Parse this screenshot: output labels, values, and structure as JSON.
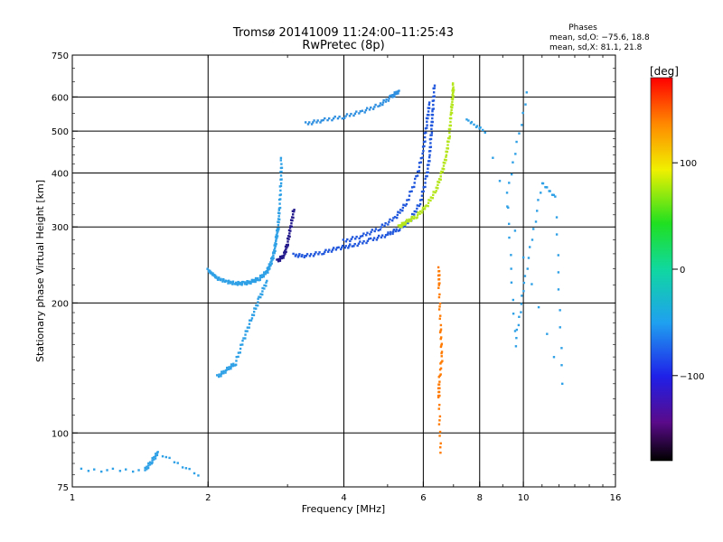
{
  "chart_data": {
    "type": "scatter",
    "title": "Tromsø 20141009 11:24:00–11:25:43",
    "subtitle": "RwPretec (8p)",
    "xlabel": "Frequency [MHz]",
    "ylabel": "Stationary phase Virtual Height [km]",
    "x_scale": "log",
    "y_scale": "log",
    "xlim": [
      1,
      16
    ],
    "ylim": [
      75,
      750
    ],
    "x_ticks": [
      1,
      2,
      4,
      6,
      8,
      10,
      16
    ],
    "x_tick_labels": [
      "1",
      "2",
      "4",
      "6",
      "8",
      "10",
      "16"
    ],
    "y_ticks": [
      75,
      100,
      200,
      300,
      400,
      500,
      600,
      750
    ],
    "y_tick_labels": [
      "75",
      "100",
      "200",
      "300",
      "400",
      "500",
      "600",
      "750"
    ],
    "grid": true,
    "phase_stats": {
      "title": "Phases",
      "line1": "mean, sd,O: −75.6, 18.8",
      "line2": "mean, sd,X: 81.1, 21.8"
    },
    "colorbar": {
      "label": "[deg]",
      "range": [
        -180,
        180
      ],
      "ticks": [
        -100,
        0,
        100
      ],
      "tick_labels": [
        "−100",
        "0",
        "100"
      ]
    },
    "traces": [
      {
        "name_hint": "o-trace-E",
        "color": "#2ea0e6",
        "points": [
          [
            2.0,
            238
          ],
          [
            2.05,
            233
          ],
          [
            2.1,
            228
          ],
          [
            2.2,
            224
          ],
          [
            2.3,
            222
          ],
          [
            2.4,
            222
          ],
          [
            2.5,
            224
          ],
          [
            2.6,
            228
          ],
          [
            2.7,
            236
          ],
          [
            2.75,
            246
          ],
          [
            2.8,
            260
          ],
          [
            2.83,
            280
          ],
          [
            2.86,
            300
          ],
          [
            2.88,
            330
          ],
          [
            2.9,
            380
          ],
          [
            2.91,
            430
          ]
        ]
      },
      {
        "name_hint": "o-trace-F",
        "color": "#1f56dc",
        "points": [
          [
            3.1,
            258
          ],
          [
            3.3,
            257
          ],
          [
            3.6,
            262
          ],
          [
            3.9,
            268
          ],
          [
            4.2,
            272
          ],
          [
            4.6,
            280
          ],
          [
            5.0,
            288
          ],
          [
            5.3,
            297
          ],
          [
            5.6,
            310
          ],
          [
            5.9,
            340
          ],
          [
            6.1,
            390
          ],
          [
            6.2,
            440
          ],
          [
            6.25,
            500
          ],
          [
            6.3,
            560
          ],
          [
            6.35,
            640
          ]
        ]
      },
      {
        "name_hint": "o-trace-F-upper",
        "color": "#1f56dc",
        "points": [
          [
            4.0,
            278
          ],
          [
            4.4,
            286
          ],
          [
            4.8,
            298
          ],
          [
            5.2,
            315
          ],
          [
            5.5,
            340
          ],
          [
            5.8,
            390
          ],
          [
            6.0,
            450
          ],
          [
            6.1,
            520
          ],
          [
            6.2,
            580
          ]
        ]
      },
      {
        "name_hint": "x-trace-F",
        "color": "#b5e61d",
        "points": [
          [
            5.3,
            300
          ],
          [
            5.5,
            308
          ],
          [
            5.8,
            318
          ],
          [
            6.1,
            335
          ],
          [
            6.4,
            365
          ],
          [
            6.6,
            400
          ],
          [
            6.75,
            440
          ],
          [
            6.85,
            490
          ],
          [
            6.92,
            550
          ],
          [
            6.97,
            600
          ],
          [
            7.0,
            640
          ]
        ]
      },
      {
        "name_hint": "spread-layer",
        "color": "#2e8fe0",
        "points": [
          [
            3.3,
            520
          ],
          [
            3.6,
            530
          ],
          [
            4.0,
            540
          ],
          [
            4.4,
            555
          ],
          [
            4.8,
            575
          ],
          [
            5.1,
            600
          ],
          [
            5.3,
            620
          ]
        ]
      },
      {
        "name_hint": "dark-cusp",
        "color": "#241a8c",
        "points": [
          [
            2.85,
            250
          ],
          [
            2.95,
            258
          ],
          [
            3.0,
            275
          ],
          [
            3.05,
            300
          ],
          [
            3.1,
            330
          ]
        ]
      },
      {
        "name_hint": "low-trace",
        "color": "#2ea0e6",
        "points": [
          [
            2.1,
            135
          ],
          [
            2.2,
            140
          ],
          [
            2.3,
            145
          ],
          [
            2.4,
            165
          ],
          [
            2.5,
            185
          ],
          [
            2.6,
            205
          ],
          [
            2.7,
            225
          ]
        ]
      },
      {
        "name_hint": "e-region-low",
        "color": "#2ea0e6",
        "points": [
          [
            1.05,
            82
          ],
          [
            1.45,
            82
          ],
          [
            1.5,
            86
          ],
          [
            1.55,
            90
          ],
          [
            1.9,
            80
          ]
        ]
      },
      {
        "name_hint": "sparse-orange",
        "color": "#ff7a00",
        "points": [
          [
            6.5,
            240
          ],
          [
            6.5,
            220
          ],
          [
            6.55,
            175
          ],
          [
            6.6,
            150
          ],
          [
            6.5,
            130
          ],
          [
            6.5,
            120
          ],
          [
            6.55,
            90
          ]
        ]
      },
      {
        "name_hint": "sparse-misc",
        "color": "#2ea0e6",
        "points": [
          [
            10.2,
            610
          ],
          [
            9.2,
            360
          ],
          [
            9.6,
            160
          ],
          [
            10.1,
            230
          ],
          [
            11.0,
            380
          ],
          [
            11.8,
            350
          ],
          [
            12.2,
            130
          ],
          [
            8.2,
            500
          ],
          [
            7.5,
            530
          ]
        ]
      }
    ]
  }
}
